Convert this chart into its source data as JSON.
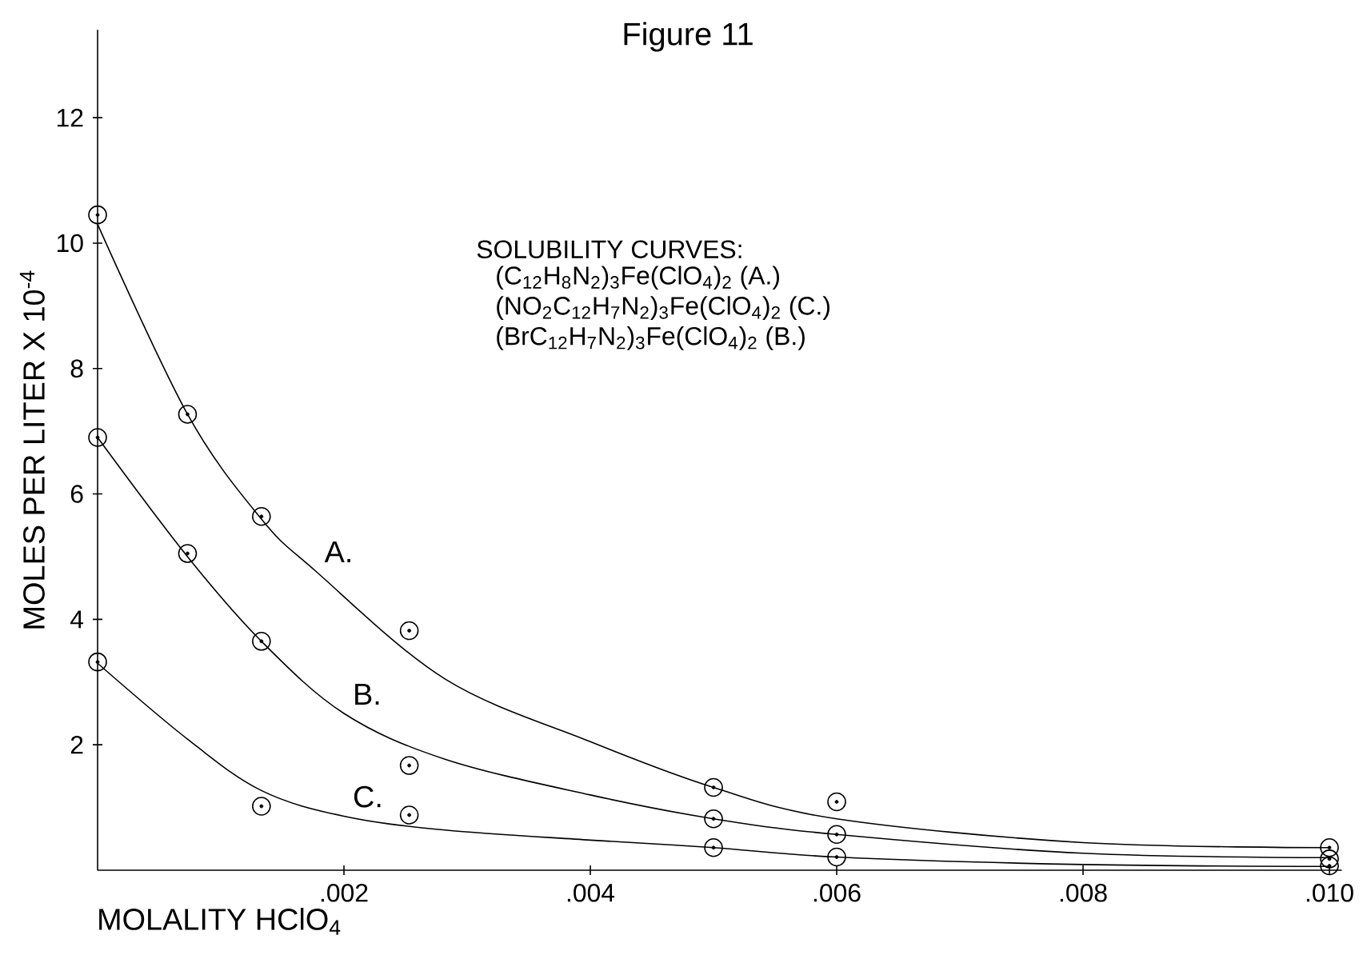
{
  "chart_data": {
    "type": "scatter",
    "title": "Figure 11",
    "xlabel": "MOLALITY HClO$_{4}$",
    "ylabel": "MOLES PER LITER X 10$^{-4}$",
    "xlim": [
      0,
      0.0101
    ],
    "ylim": [
      0,
      13.4
    ],
    "xticks": [
      {
        "value": 0.002,
        "label": ".002"
      },
      {
        "value": 0.004,
        "label": ".004"
      },
      {
        "value": 0.006,
        "label": ".006"
      },
      {
        "value": 0.008,
        "label": ".008"
      },
      {
        "value": 0.01,
        "label": ".010"
      }
    ],
    "yticks": [
      2,
      4,
      6,
      8,
      10,
      12
    ],
    "line_style": "solid",
    "annotations": [
      "SOLUBILITY CURVES:",
      "(C$_{12}$H$_{8}$N$_{2}$)$_{3}$Fe(ClO$_{4}$)$_{2}$ (A.)",
      "(NO$_{2}$C$_{12}$H$_{7}$N$_{2}$)$_{3}$Fe(ClO$_{4}$)$_{2}$ (C.)",
      "(BrC$_{12}$H$_{7}$N$_{2}$)$_{3}$Fe(ClO$_{4}$)$_{2}$ (B.)"
    ],
    "series": [
      {
        "color": "#000000",
        "marker": "circle",
        "x": [
          0,
          0.00073,
          0.00133,
          0.00253,
          0.005,
          0.006,
          0.01
        ],
        "values": [
          10.45,
          7.27,
          5.64,
          3.82,
          1.32,
          1.09,
          0.36
        ]
      },
      {
        "color": "#000000",
        "marker": "circle",
        "x": [
          0,
          0.00073,
          0.00133,
          0.00253,
          0.005,
          0.006,
          0.01
        ],
        "values": [
          6.9,
          5.05,
          3.65,
          1.67,
          0.82,
          0.57,
          0.18
        ]
      },
      {
        "color": "#000000",
        "marker": "circle",
        "x": [
          0,
          0.00133,
          0.00253,
          0.005,
          0.006,
          0.01
        ],
        "values": [
          3.32,
          1.02,
          0.88,
          0.36,
          0.21,
          0.07
        ]
      },
      {
        "type": "line",
        "name": "A.",
        "color": "#000000",
        "marker": "none",
        "x": [
          0,
          0.00073,
          0.00133,
          0.00177,
          0.00282,
          0.004,
          0.005,
          0.006,
          0.008,
          0.01
        ],
        "values": [
          10.3,
          7.27,
          5.6,
          4.77,
          3.05,
          2.05,
          1.32,
          0.82,
          0.44,
          0.36
        ]
      },
      {
        "type": "line",
        "name": "B.",
        "color": "#000000",
        "marker": "none",
        "x": [
          0,
          0.00073,
          0.00133,
          0.002,
          0.00282,
          0.004,
          0.005,
          0.006,
          0.008,
          0.01
        ],
        "values": [
          6.9,
          5.0,
          3.65,
          2.5,
          1.77,
          1.2,
          0.82,
          0.57,
          0.27,
          0.2
        ]
      },
      {
        "type": "line",
        "name": "C.",
        "color": "#000000",
        "marker": "none",
        "x": [
          0,
          0.00073,
          0.00133,
          0.002,
          0.00282,
          0.004,
          0.005,
          0.006,
          0.008,
          0.01
        ],
        "values": [
          3.3,
          2.09,
          1.27,
          0.86,
          0.64,
          0.48,
          0.36,
          0.21,
          0.09,
          0.06
        ]
      }
    ]
  }
}
